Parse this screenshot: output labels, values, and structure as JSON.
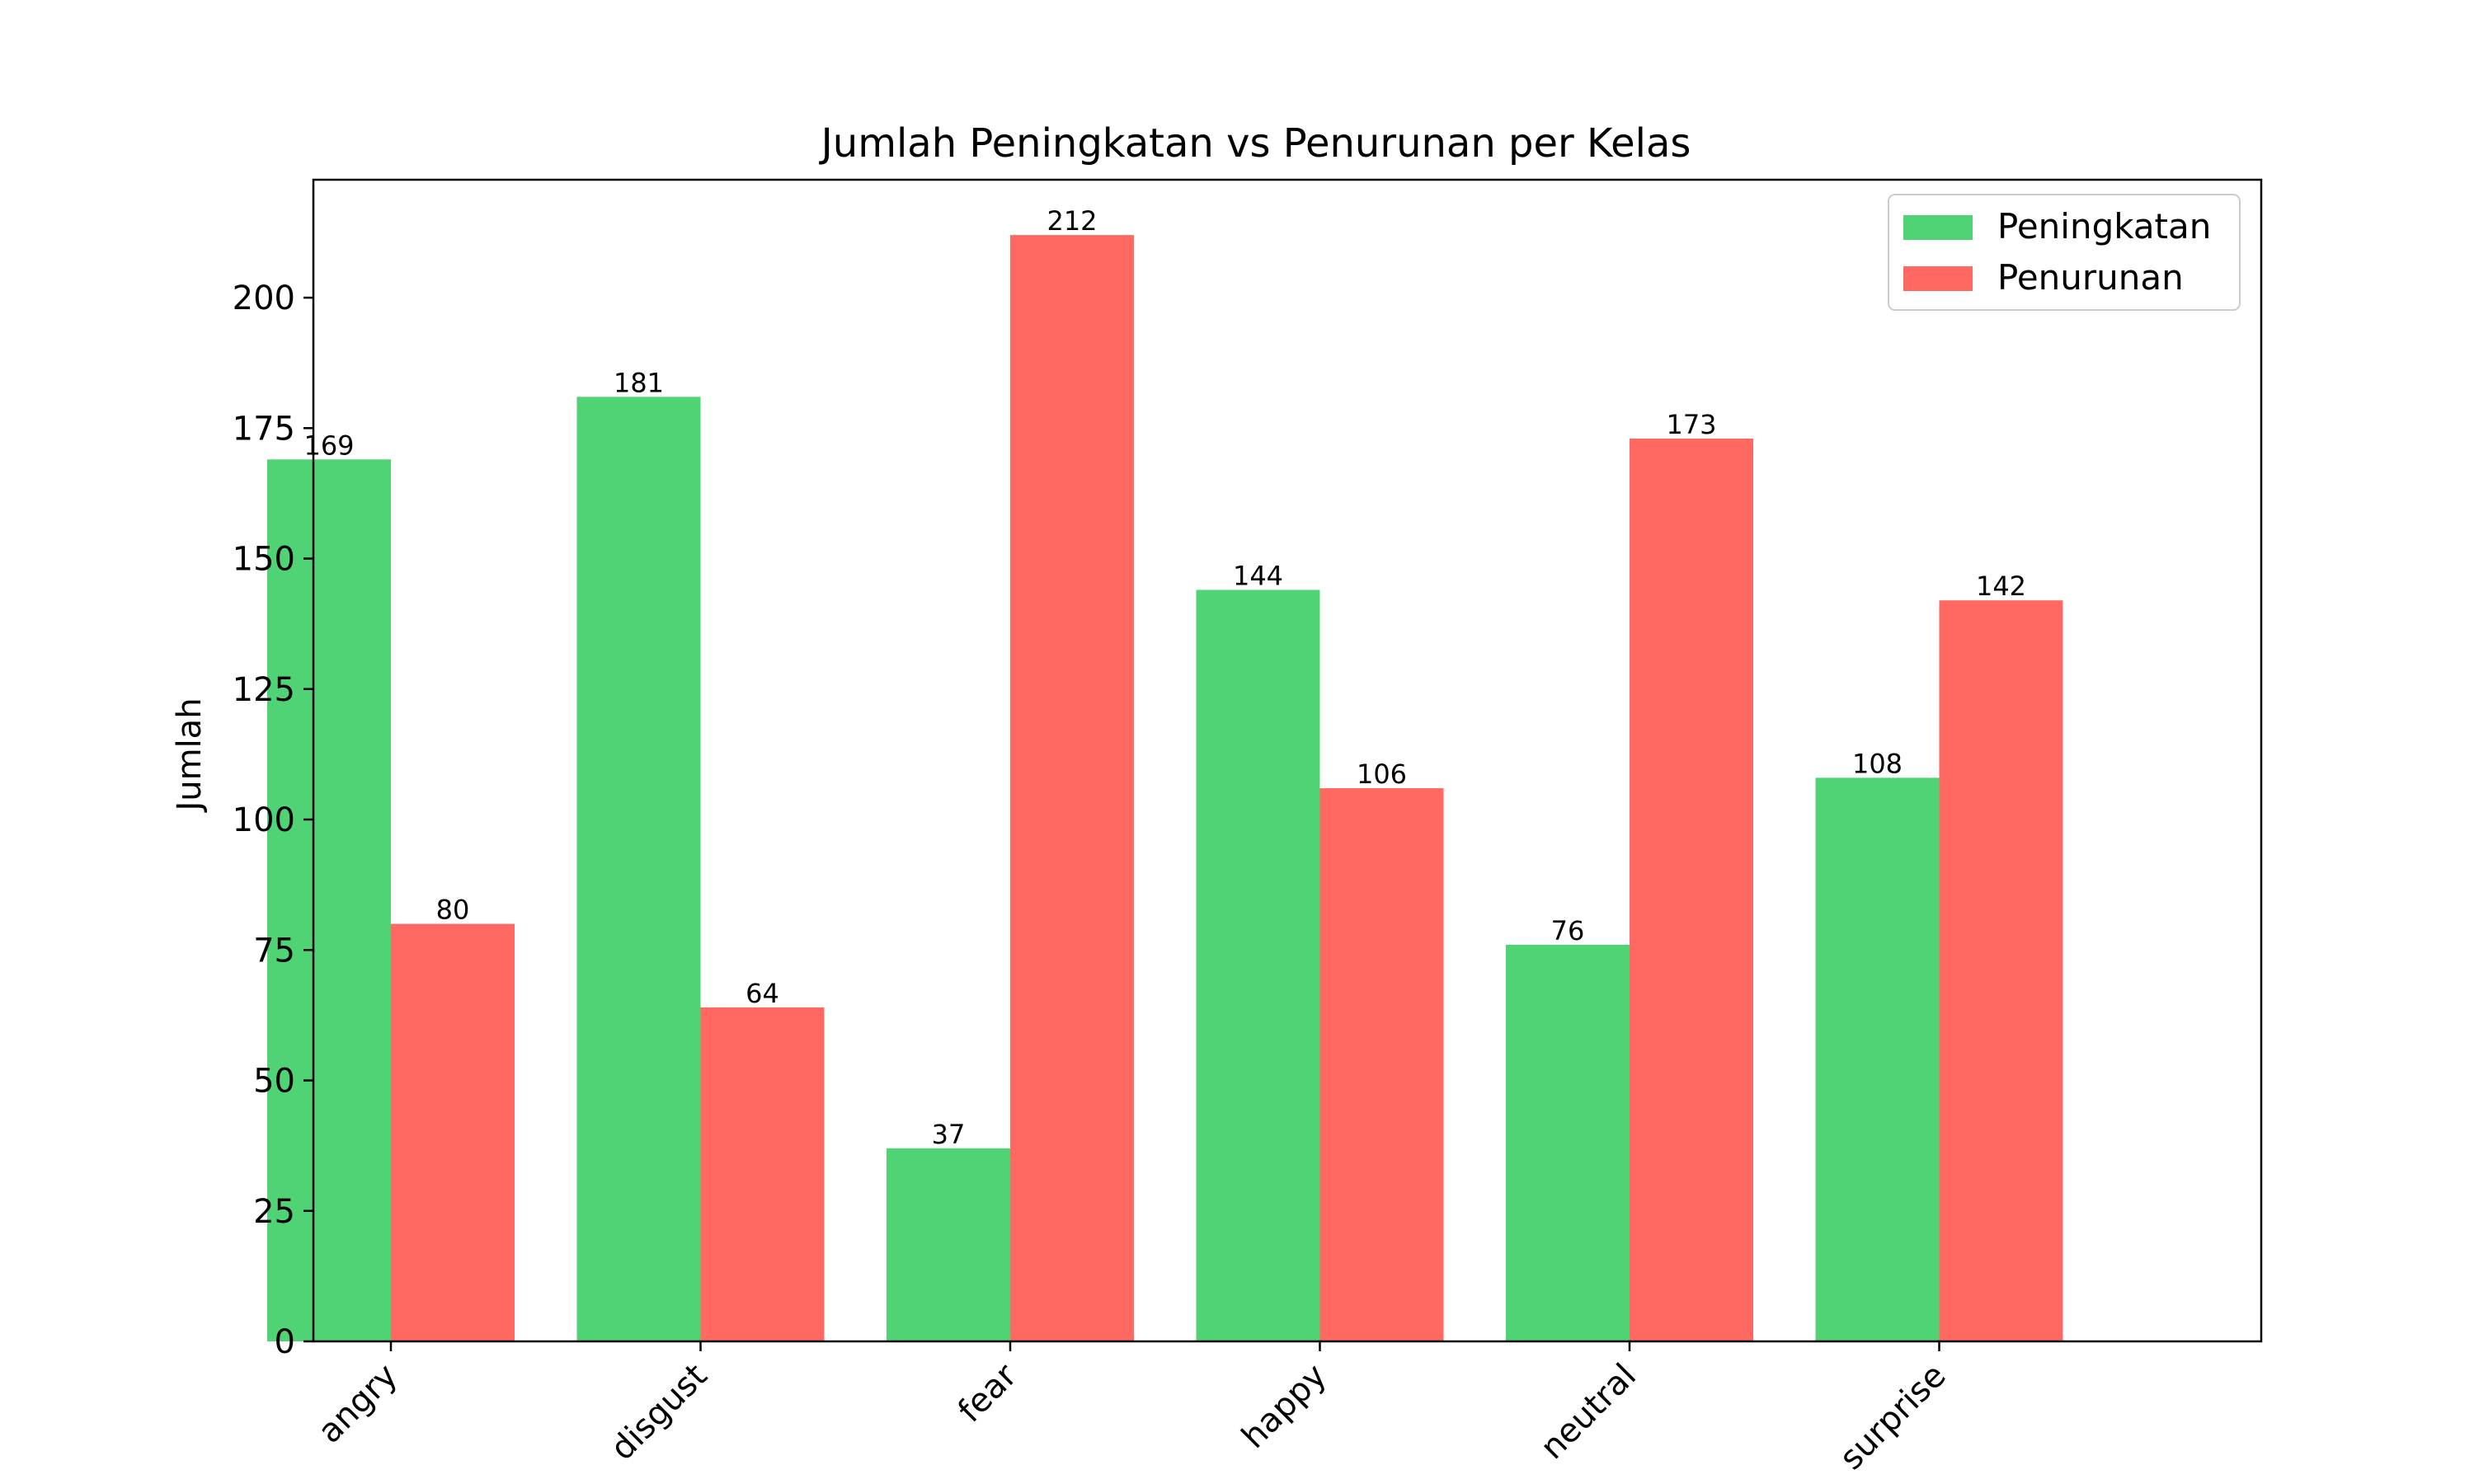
{
  "chart_data": {
    "type": "bar",
    "title": "Jumlah Peningkatan vs Penurunan per Kelas",
    "xlabel": "",
    "ylabel": "Jumlah",
    "categories": [
      "angry",
      "disgust",
      "fear",
      "happy",
      "neutral",
      "surprise"
    ],
    "series": [
      {
        "name": "Peningkatan",
        "color": "#4fd374",
        "values": [
          169,
          181,
          37,
          144,
          76,
          108
        ]
      },
      {
        "name": "Penurunan",
        "color": "#ff6961",
        "values": [
          80,
          64,
          212,
          106,
          173,
          142
        ]
      }
    ],
    "ylim": [
      0,
      222.6
    ],
    "yticks": [
      0,
      25,
      50,
      75,
      100,
      125,
      150,
      175,
      200
    ],
    "grid": false,
    "legend_position": "top-right"
  }
}
